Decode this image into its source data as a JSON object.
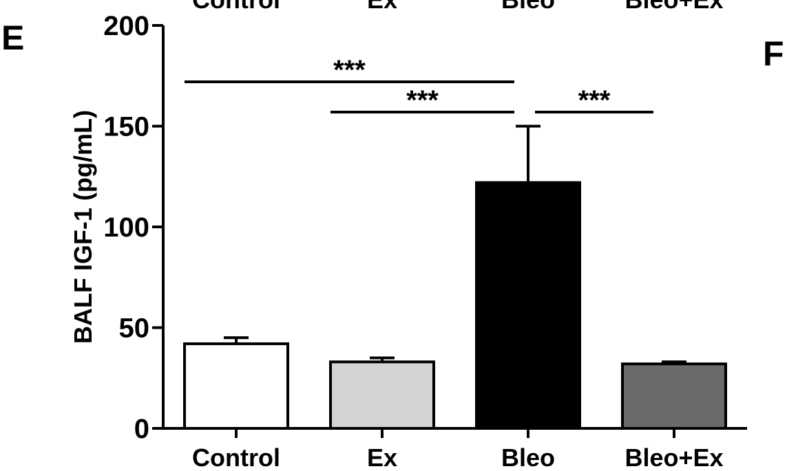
{
  "top_labels": [
    "Control",
    "Ex",
    "Bleo",
    "Bleo+Ex"
  ],
  "panel_letters": {
    "left": "E",
    "right": "F"
  },
  "chart_data": {
    "type": "bar",
    "title": "",
    "xlabel": "",
    "ylabel": "BALF IGF-1 (pg/mL)",
    "ylim": [
      0,
      200
    ],
    "yticks": [
      0,
      50,
      100,
      150,
      200
    ],
    "categories": [
      "Control",
      "Ex",
      "Bleo",
      "Bleo+Ex"
    ],
    "values": [
      42,
      33,
      122,
      32
    ],
    "errors": [
      3,
      2,
      28,
      1
    ],
    "bar_colors": [
      "#ffffff",
      "#d3d3d3",
      "#000000",
      "#6b6b6b"
    ],
    "grid": false,
    "significance": [
      {
        "from": 0,
        "to": 2,
        "label": "***",
        "y": 172
      },
      {
        "from": 1,
        "to": 2,
        "label": "***",
        "y": 157
      },
      {
        "from": 2,
        "to": 3,
        "label": "***",
        "y": 157
      }
    ]
  }
}
